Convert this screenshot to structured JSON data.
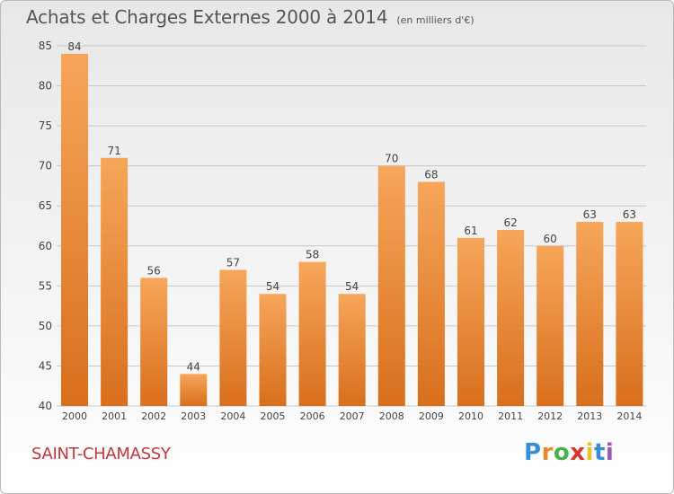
{
  "title": "Achats et Charges Externes 2000 à 2014",
  "unit": "(en milliers d'€)",
  "city": "SAINT-CHAMASSY",
  "brand": {
    "letters": [
      "P",
      "r",
      "o",
      "x",
      "i",
      "t",
      "i"
    ],
    "colors": [
      "#3a8fd4",
      "#e8892a",
      "#4bb24b",
      "#d9342f",
      "#e8c42a",
      "#3a8fd4",
      "#9b59b6"
    ]
  },
  "colors": {
    "bar_light": "#f6a65a",
    "bar_dark": "#d86f1c",
    "grid": "#c8c8c8",
    "text": "#444444"
  },
  "chart_data": {
    "type": "bar",
    "categories": [
      "2000",
      "2001",
      "2002",
      "2003",
      "2004",
      "2005",
      "2006",
      "2007",
      "2008",
      "2009",
      "2010",
      "2011",
      "2012",
      "2013",
      "2014"
    ],
    "values": [
      84,
      71,
      56,
      44,
      57,
      54,
      58,
      54,
      70,
      68,
      61,
      62,
      60,
      63,
      63
    ],
    "ylim": [
      40,
      85
    ],
    "yticks": [
      40,
      45,
      50,
      55,
      60,
      65,
      70,
      75,
      80,
      85
    ],
    "grid": true,
    "data_labels": true
  }
}
